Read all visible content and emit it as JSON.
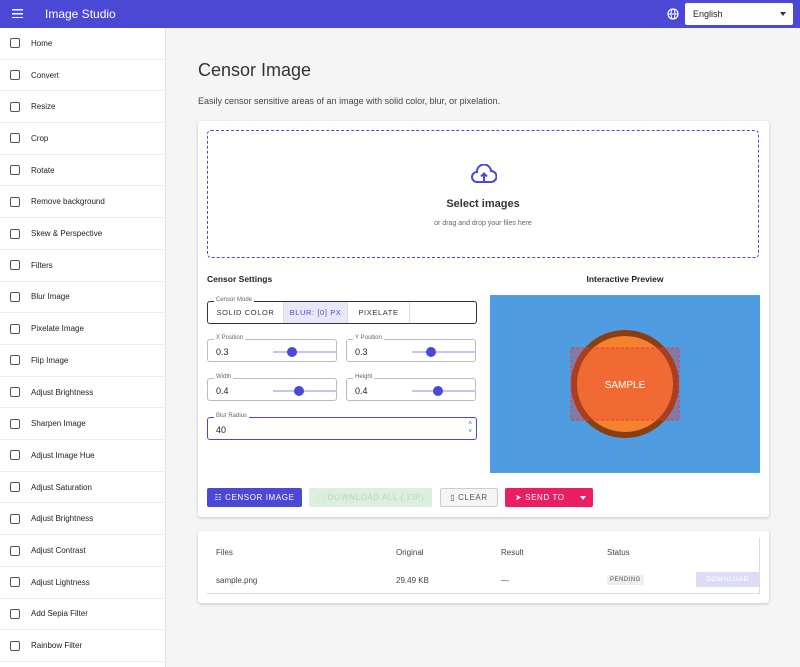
{
  "header": {
    "title": "Image Studio",
    "language": "English"
  },
  "sidebar": {
    "items": [
      "Home",
      "Convert",
      "Resize",
      "Crop",
      "Rotate",
      "Remove background",
      "Skew & Perspective",
      "Filters",
      "Blur Image",
      "Pixelate Image",
      "Flip Image",
      "Adjust Brightness",
      "Sharpen Image",
      "Adjust Image Hue",
      "Adjust Saturation",
      "Adjust Brightness",
      "Adjust Contrast",
      "Adjust Lightness",
      "Add Sepia Filter",
      "Rainbow Filter"
    ]
  },
  "page": {
    "title": "Censor Image",
    "description": "Easily censor sensitive areas of an image with solid color, blur, or pixelation."
  },
  "dropzone": {
    "title": "Select images",
    "subtitle": "or drag and drop your files here"
  },
  "settings": {
    "title": "Censor Settings",
    "mode_label": "Censor Mode",
    "modes": [
      "SOLID COLOR",
      "BLUR: [0] PX",
      "PIXELATE"
    ],
    "fields": [
      {
        "label": "X Position",
        "value": 0.3
      },
      {
        "label": "Y Position",
        "value": 0.3
      },
      {
        "label": "Width",
        "value": 0.4
      },
      {
        "label": "Height",
        "value": 0.4
      }
    ],
    "blur_label": "Blur Radius",
    "blur_value": 40
  },
  "preview": {
    "title": "Interactive Preview",
    "sample": "SAMPLE"
  },
  "actions": [
    "CENSOR IMAGE",
    "DOWNLOAD ALL (.ZIP)",
    "CLEAR",
    "SEND TO"
  ],
  "table": {
    "headers": [
      "Files",
      "Original",
      "Result",
      "Status"
    ],
    "rows": [
      [
        "sample.png",
        "29.49 KB",
        "—",
        "PENDING",
        "DOWNLOAD"
      ]
    ]
  }
}
